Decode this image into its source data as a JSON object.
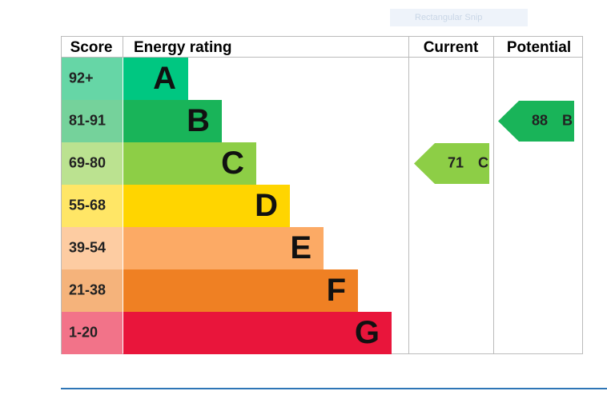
{
  "chart_data": {
    "type": "epc",
    "snip_tooltip": "Rectangular Snip",
    "headers": {
      "score": "Score",
      "rating": "Energy rating",
      "current": "Current",
      "potential": "Potential"
    },
    "bands": [
      {
        "score": "92+",
        "letter": "A",
        "color": "#00c781",
        "score_color": "#66d6a6"
      },
      {
        "score": "81-91",
        "letter": "B",
        "color": "#19b459",
        "score_color": "#75d29b"
      },
      {
        "score": "69-80",
        "letter": "C",
        "color": "#8dce46",
        "score_color": "#bbe290"
      },
      {
        "score": "55-68",
        "letter": "D",
        "color": "#ffd500",
        "score_color": "#ffe666"
      },
      {
        "score": "39-54",
        "letter": "E",
        "color": "#fcaa65",
        "score_color": "#fdcca2"
      },
      {
        "score": "21-38",
        "letter": "F",
        "color": "#ef8023",
        "score_color": "#f5b37b"
      },
      {
        "score": "1-20",
        "letter": "G",
        "color": "#e9153b",
        "score_color": "#f27389"
      }
    ],
    "current": {
      "value": 71,
      "rating": "C"
    },
    "potential": {
      "value": 88,
      "rating": "B"
    }
  }
}
